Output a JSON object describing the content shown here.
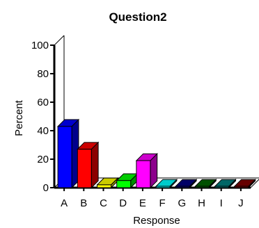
{
  "chart_data": {
    "type": "bar",
    "title": "Question2",
    "xlabel": "Response",
    "ylabel": "Percent",
    "ylim": [
      0,
      100
    ],
    "yticks": [
      0,
      20,
      40,
      60,
      80,
      100
    ],
    "categories": [
      "A",
      "B",
      "C",
      "D",
      "E",
      "F",
      "G",
      "H",
      "I",
      "J"
    ],
    "values": [
      43,
      27,
      2,
      5,
      19,
      0,
      0,
      0,
      0,
      0
    ],
    "colors": [
      "#0000ff",
      "#ff0000",
      "#ffff00",
      "#00ff00",
      "#ff00ff",
      "#00ffff",
      "#000080",
      "#006400",
      "#008080",
      "#800000"
    ],
    "grid": false,
    "legend": "none",
    "style": "3d"
  }
}
